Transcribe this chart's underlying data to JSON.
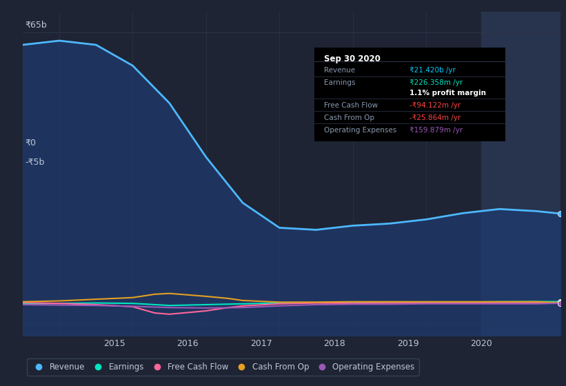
{
  "bg_color": "#1e2433",
  "plot_bg_color": "#1e2433",
  "grid_color": "#2e3547",
  "text_color": "#c0c8d8",
  "y_label_65b": "₹65b",
  "y_label_0": "₹0",
  "y_label_neg5b": "-₹5b",
  "revenue_color": "#4db8ff",
  "earnings_color": "#00e5c0",
  "fcf_color": "#ff6699",
  "cashfromop_color": "#e5a020",
  "opex_color": "#9b59b6",
  "revenue_x": [
    2013.5,
    2014.0,
    2014.5,
    2015.0,
    2015.5,
    2016.0,
    2016.5,
    2017.0,
    2017.5,
    2018.0,
    2018.5,
    2019.0,
    2019.5,
    2020.0,
    2020.5,
    2020.83
  ],
  "revenue_y": [
    62,
    63,
    62,
    57,
    48,
    35,
    24,
    18,
    17.5,
    18.5,
    19,
    20,
    21.5,
    22.5,
    22,
    21.4
  ],
  "earnings_x": [
    2013.5,
    2014.0,
    2014.5,
    2015.0,
    2015.3,
    2015.5,
    2016.0,
    2016.5,
    2017.0,
    2017.5,
    2018.0,
    2018.5,
    2019.0,
    2019.5,
    2020.0,
    2020.5,
    2020.83
  ],
  "earnings_y": [
    -0.3,
    -0.2,
    -0.1,
    -0.2,
    -0.5,
    -0.7,
    -0.5,
    -0.3,
    -0.1,
    0.0,
    0.1,
    0.1,
    0.0,
    0.1,
    0.2,
    0.25,
    0.226
  ],
  "fcf_x": [
    2013.5,
    2014.0,
    2014.5,
    2015.0,
    2015.3,
    2015.5,
    2016.0,
    2016.3,
    2016.5,
    2017.0,
    2017.5,
    2018.0,
    2018.5,
    2019.0,
    2019.5,
    2020.0,
    2020.5,
    2020.83
  ],
  "fcf_y": [
    0.0,
    -0.2,
    -0.5,
    -1.0,
    -2.5,
    -2.8,
    -2.0,
    -1.2,
    -0.8,
    -0.3,
    -0.1,
    -0.2,
    -0.1,
    -0.1,
    -0.1,
    -0.1,
    -0.1,
    -0.094
  ],
  "cashop_x": [
    2013.5,
    2014.0,
    2014.5,
    2015.0,
    2015.3,
    2015.5,
    2016.0,
    2016.3,
    2016.5,
    2017.0,
    2017.5,
    2018.0,
    2018.5,
    2019.0,
    2019.5,
    2020.0,
    2020.5,
    2020.83
  ],
  "cashop_y": [
    0.2,
    0.4,
    0.8,
    1.2,
    2.0,
    2.2,
    1.5,
    1.0,
    0.5,
    0.1,
    0.1,
    0.2,
    0.2,
    0.2,
    0.2,
    0.2,
    0.2,
    -0.026
  ],
  "opex_x": [
    2013.5,
    2014.0,
    2014.5,
    2015.0,
    2015.5,
    2016.0,
    2016.5,
    2017.0,
    2017.5,
    2018.0,
    2018.5,
    2019.0,
    2019.5,
    2020.0,
    2020.5,
    2020.83
  ],
  "opex_y": [
    -0.5,
    -0.6,
    -0.7,
    -0.9,
    -1.2,
    -1.3,
    -1.2,
    -0.8,
    -0.5,
    -0.4,
    -0.4,
    -0.3,
    -0.3,
    -0.3,
    -0.3,
    -0.16
  ],
  "x_tick_positions": [
    2014.75,
    2015.75,
    2016.75,
    2017.75,
    2018.75,
    2019.75
  ],
  "x_tick_labels": [
    "2015",
    "2016",
    "2017",
    "2018",
    "2019",
    "2020"
  ],
  "info_box": {
    "title": "Sep 30 2020",
    "rows": [
      {
        "label": "Revenue",
        "value": "₹21.420b /yr",
        "value_color": "#00ccff"
      },
      {
        "label": "Earnings",
        "value": "₹226.358m /yr",
        "value_color": "#00e5c0"
      },
      {
        "label": "",
        "value": "1.1% profit margin",
        "value_color": "#ffffff"
      },
      {
        "label": "Free Cash Flow",
        "value": "-₹94.122m /yr",
        "value_color": "#ff4444"
      },
      {
        "label": "Cash From Op",
        "value": "-₹25.864m /yr",
        "value_color": "#ff4444"
      },
      {
        "label": "Operating Expenses",
        "value": "₹159.879m /yr",
        "value_color": "#9b59b6"
      }
    ]
  },
  "legend_items": [
    {
      "label": "Revenue",
      "color": "#4db8ff"
    },
    {
      "label": "Earnings",
      "color": "#00e5c0"
    },
    {
      "label": "Free Cash Flow",
      "color": "#ff6699"
    },
    {
      "label": "Cash From Op",
      "color": "#e5a020"
    },
    {
      "label": "Operating Expenses",
      "color": "#9b59b6"
    }
  ],
  "highlight_x_start": 2019.75,
  "highlight_x_end": 2020.83,
  "ylim": [
    -8,
    70
  ],
  "xlim": [
    2013.5,
    2020.83
  ],
  "fill_color": "#1e3a6e",
  "highlight_color": "#2a3550"
}
